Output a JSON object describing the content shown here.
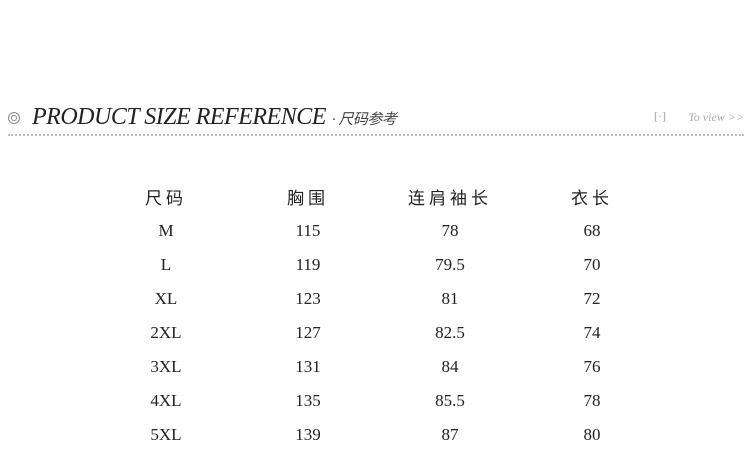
{
  "header": {
    "title": "PRODUCT SIZE REFERENCE",
    "subtitle": "· 尺码参考",
    "view_label": "To view >>",
    "view_icon": "[·]"
  },
  "table": {
    "columns": [
      "尺码",
      "胸围",
      "连肩袖长",
      "衣长"
    ],
    "rows": [
      [
        "M",
        "115",
        "78",
        "68"
      ],
      [
        "L",
        "119",
        "79.5",
        "70"
      ],
      [
        "XL",
        "123",
        "81",
        "72"
      ],
      [
        "2XL",
        "127",
        "82.5",
        "74"
      ],
      [
        "3XL",
        "131",
        "84",
        "76"
      ],
      [
        "4XL",
        "135",
        "85.5",
        "78"
      ],
      [
        "5XL",
        "139",
        "87",
        "80"
      ]
    ]
  }
}
